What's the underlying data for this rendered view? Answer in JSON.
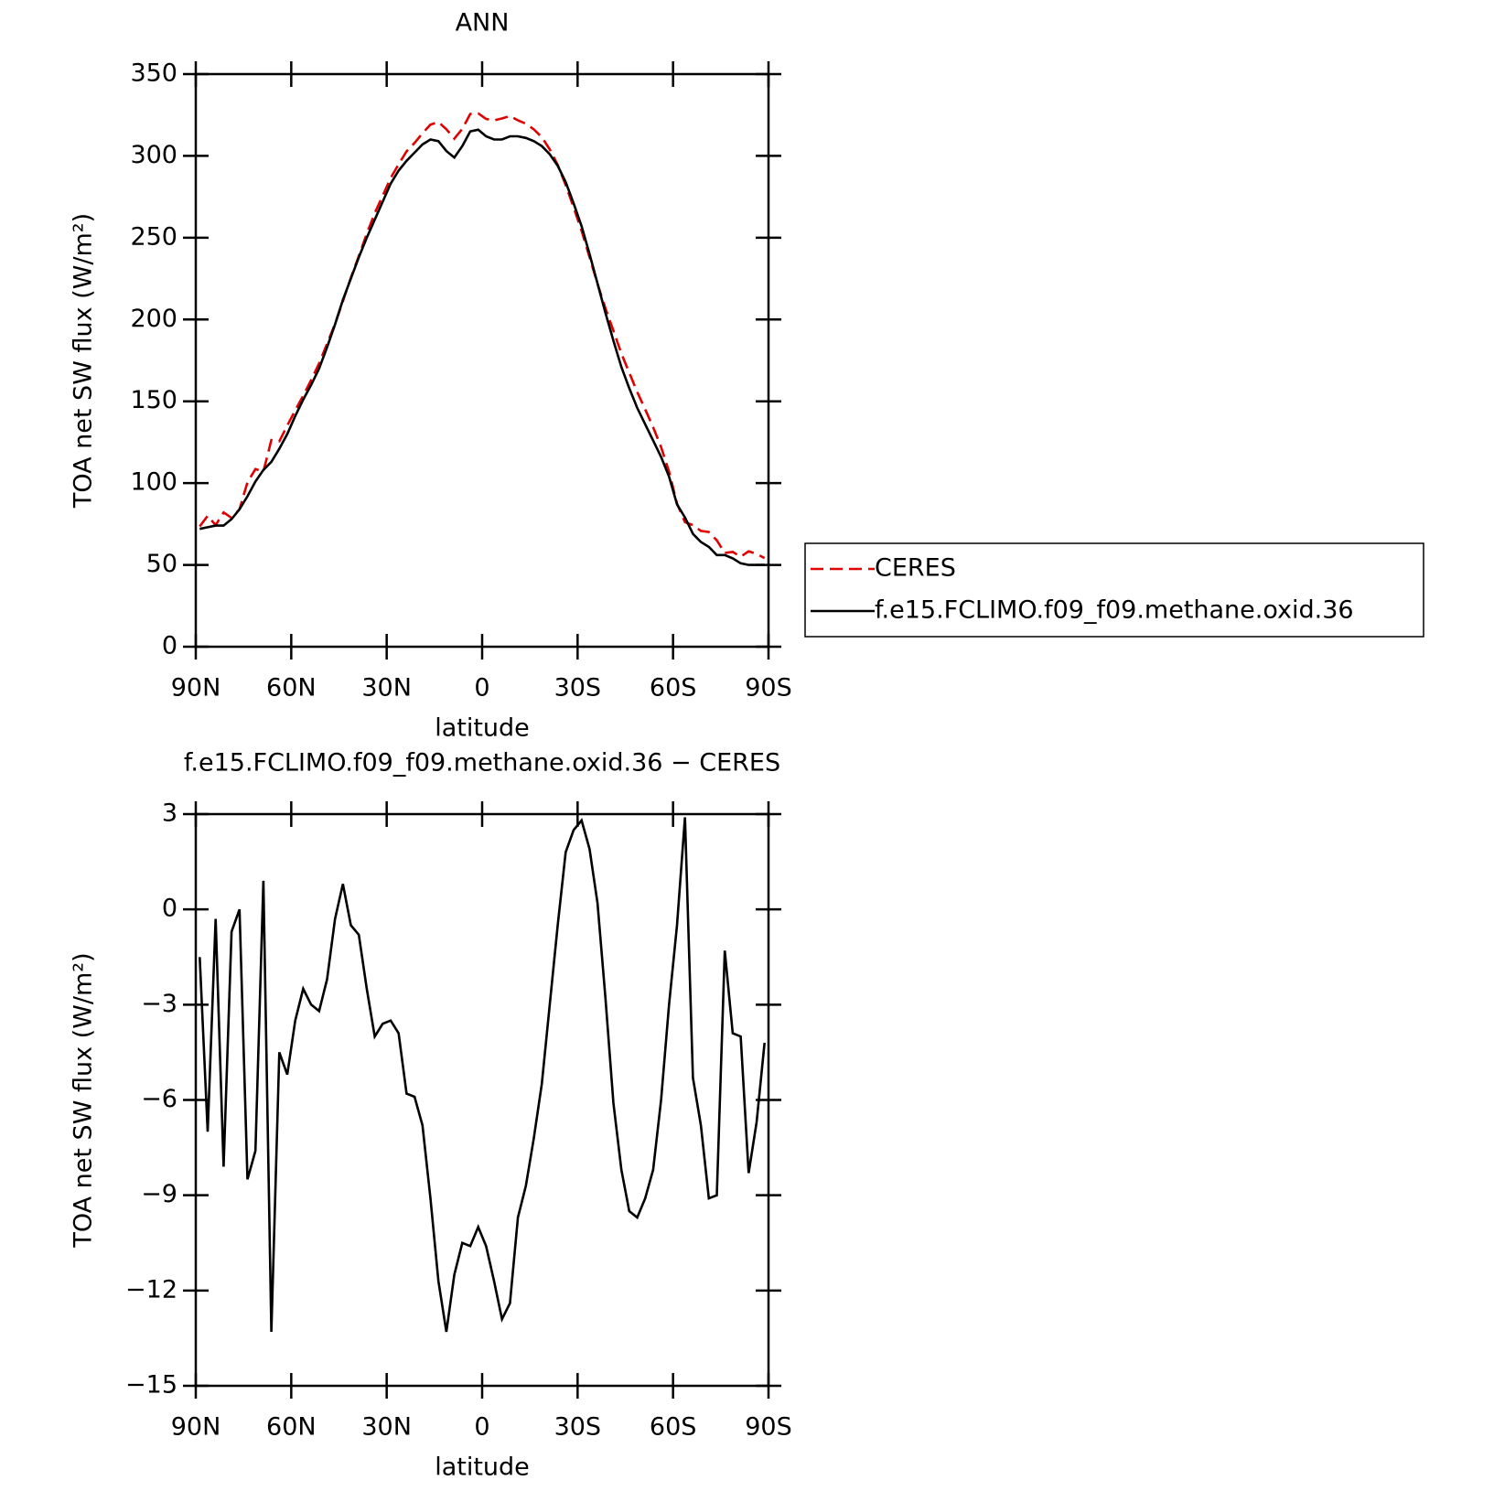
{
  "chart_data": [
    {
      "type": "line",
      "title": "ANN",
      "xlabel": "latitude",
      "ylabel": "TOA net SW flux (W/m²)",
      "x": [
        88.75,
        86.25,
        83.75,
        81.25,
        78.75,
        76.25,
        73.75,
        71.25,
        68.75,
        66.25,
        63.75,
        61.25,
        58.75,
        56.25,
        53.75,
        51.25,
        48.75,
        46.25,
        43.75,
        41.25,
        38.75,
        36.25,
        33.75,
        31.25,
        28.75,
        26.25,
        23.75,
        21.25,
        18.75,
        16.25,
        13.75,
        11.25,
        8.75,
        6.25,
        3.75,
        1.25,
        -1.25,
        -3.75,
        -6.25,
        -8.75,
        -11.25,
        -13.75,
        -16.25,
        -18.75,
        -21.25,
        -23.75,
        -26.25,
        -28.75,
        -31.25,
        -33.75,
        -36.25,
        -38.75,
        -41.25,
        -43.75,
        -46.25,
        -48.75,
        -51.25,
        -53.75,
        -56.25,
        -58.75,
        -61.25,
        -63.75,
        -66.25,
        -68.75,
        -71.25,
        -73.75,
        -76.25,
        -78.75,
        -81.25,
        -83.75,
        -86.25,
        -88.75
      ],
      "series": [
        {
          "name": "CERES",
          "color": "#e00000",
          "linestyle": "dashed",
          "values": [
            73.5,
            80,
            74.3,
            82.1,
            78.7,
            84,
            100.5,
            108.6,
            107.1,
            126.3,
            125.5,
            135.2,
            144.5,
            153.5,
            163,
            173.2,
            185.2,
            197.3,
            211.2,
            225.5,
            238.8,
            252.5,
            265,
            275.6,
            286.5,
            294.9,
            302.8,
            307.9,
            313.8,
            319.1,
            320.7,
            316.3,
            310.5,
            316.5,
            325.6,
            326,
            322.6,
            321.7,
            322.9,
            324.4,
            321.7,
            319.7,
            316.2,
            311.5,
            304,
            294.5,
            282.2,
            268.5,
            254.2,
            238.1,
            221.8,
            206.8,
            193.1,
            179.2,
            167.5,
            155.7,
            145.1,
            134.2,
            122,
            107,
            87.5,
            76.1,
            74.3,
            70.8,
            70.1,
            65,
            57.3,
            57.9,
            55,
            58.3,
            56.7,
            54.2
          ]
        },
        {
          "name": "f.e15.FCLIMO.f09_f09.methane.oxid.36",
          "color": "#000000",
          "linestyle": "solid",
          "values": [
            72,
            73,
            74,
            74,
            78,
            84,
            92,
            101,
            108,
            113,
            121,
            130,
            141,
            151,
            160,
            170,
            183,
            197,
            212,
            225,
            238,
            250,
            261,
            272,
            283,
            291,
            297,
            302,
            307,
            310,
            309,
            303,
            299,
            306,
            315,
            316,
            312,
            310,
            310,
            312,
            312,
            311,
            309,
            306,
            301,
            294,
            284,
            271,
            257,
            240,
            222,
            204,
            187,
            171,
            158,
            146,
            136,
            126,
            116,
            104,
            87,
            79,
            69,
            64,
            61,
            56,
            56,
            54,
            51,
            50,
            50,
            50
          ]
        }
      ],
      "xlim": [
        90,
        -90
      ],
      "xticks": [
        {
          "value": 90,
          "label": "90N"
        },
        {
          "value": 60,
          "label": "60N"
        },
        {
          "value": 30,
          "label": "30N"
        },
        0,
        {
          "value": -30,
          "label": "30S"
        },
        {
          "value": -60,
          "label": "60S"
        },
        {
          "value": -90,
          "label": "90S"
        }
      ],
      "ylim": [
        0,
        350
      ],
      "yticks": [
        0,
        50,
        100,
        150,
        200,
        250,
        300,
        350
      ],
      "legend": "right"
    },
    {
      "type": "line",
      "title": "f.e15.FCLIMO.f09_f09.methane.oxid.36 − CERES",
      "xlabel": "latitude",
      "ylabel": "TOA net SW flux (W/m²)",
      "x": [
        88.75,
        86.25,
        83.75,
        81.25,
        78.75,
        76.25,
        73.75,
        71.25,
        68.75,
        66.25,
        63.75,
        61.25,
        58.75,
        56.25,
        53.75,
        51.25,
        48.75,
        46.25,
        43.75,
        41.25,
        38.75,
        36.25,
        33.75,
        31.25,
        28.75,
        26.25,
        23.75,
        21.25,
        18.75,
        16.25,
        13.75,
        11.25,
        8.75,
        6.25,
        3.75,
        1.25,
        -1.25,
        -3.75,
        -6.25,
        -8.75,
        -11.25,
        -13.75,
        -16.25,
        -18.75,
        -21.25,
        -23.75,
        -26.25,
        -28.75,
        -31.25,
        -33.75,
        -36.25,
        -38.75,
        -41.25,
        -43.75,
        -46.25,
        -48.75,
        -51.25,
        -53.75,
        -56.25,
        -58.75,
        -61.25,
        -63.75,
        -66.25,
        -68.75,
        -71.25,
        -73.75,
        -76.25,
        -78.75,
        -81.25,
        -83.75,
        -86.25,
        -88.75
      ],
      "series": [
        {
          "color": "#000000",
          "linestyle": "solid",
          "values": [
            -1.5,
            -7.0,
            -0.3,
            -8.1,
            -0.7,
            0.0,
            -8.5,
            -7.6,
            0.9,
            -13.3,
            -4.5,
            -5.2,
            -3.5,
            -2.5,
            -3.0,
            -3.2,
            -2.2,
            -0.3,
            0.8,
            -0.5,
            -0.8,
            -2.5,
            -4.0,
            -3.6,
            -3.5,
            -3.9,
            -5.8,
            -5.9,
            -6.8,
            -9.1,
            -11.7,
            -13.3,
            -11.5,
            -10.5,
            -10.6,
            -10.0,
            -10.6,
            -11.7,
            -12.9,
            -12.4,
            -9.7,
            -8.7,
            -7.2,
            -5.5,
            -3.0,
            -0.5,
            1.8,
            2.5,
            2.8,
            1.9,
            0.2,
            -2.8,
            -6.1,
            -8.2,
            -9.5,
            -9.7,
            -9.1,
            -8.2,
            -6.0,
            -3.0,
            -0.5,
            2.9,
            -5.3,
            -6.8,
            -9.1,
            -9.0,
            -1.3,
            -3.9,
            -4.0,
            -8.3,
            -6.7,
            -4.2
          ]
        }
      ],
      "xlim": [
        90,
        -90
      ],
      "xticks": [
        {
          "value": 90,
          "label": "90N"
        },
        {
          "value": 60,
          "label": "60N"
        },
        {
          "value": 30,
          "label": "30N"
        },
        0,
        {
          "value": -30,
          "label": "30S"
        },
        {
          "value": -60,
          "label": "60S"
        },
        {
          "value": -90,
          "label": "90S"
        }
      ],
      "ylim": [
        -15,
        3
      ],
      "yticks": [
        {
          "value": -15,
          "label": "−15"
        },
        {
          "value": -12,
          "label": "−12"
        },
        {
          "value": -9,
          "label": "−9"
        },
        {
          "value": -6,
          "label": "−6"
        },
        {
          "value": -3,
          "label": "−3"
        },
        0,
        3
      ]
    }
  ]
}
